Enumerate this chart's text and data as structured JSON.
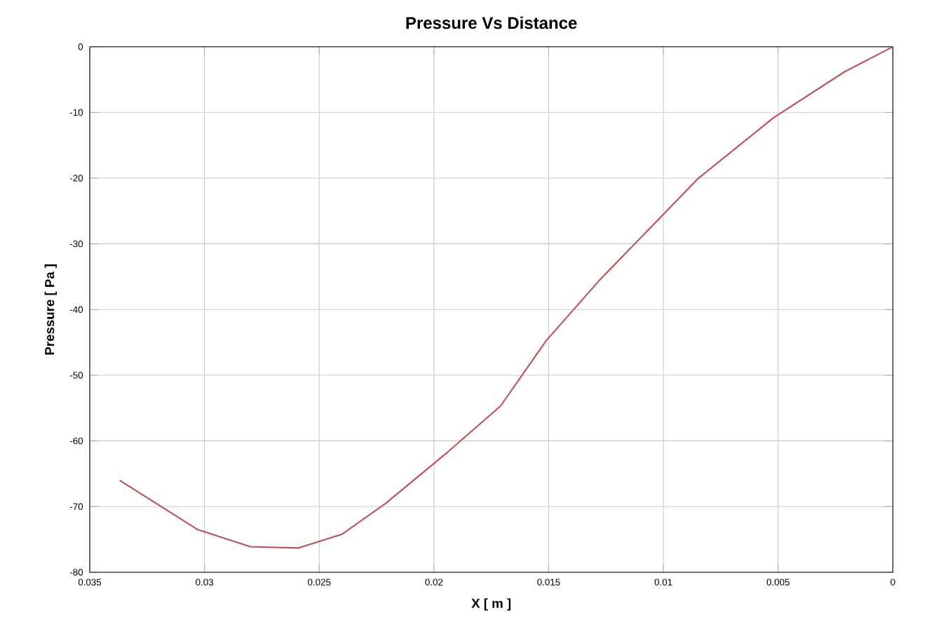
{
  "chart_data": {
    "type": "line",
    "title": "Pressure Vs Distance",
    "xlabel": "X [ m ]",
    "ylabel": "Pressure [ Pa ]",
    "x": [
      0.0337,
      0.0303,
      0.028,
      0.0259,
      0.024,
      0.0221,
      0.0194,
      0.0171,
      0.0151,
      0.0128,
      0.0085,
      0.0052,
      0.0021,
      0
    ],
    "series": [
      {
        "color": "#c05058",
        "values": [
          -66,
          -73.5,
          -76.1,
          -76.3,
          -74.2,
          -69.5,
          -61.7,
          -54.7,
          -44.7,
          -35.6,
          -20.1,
          -10.8,
          -3.8,
          0
        ]
      }
    ],
    "xlim": [
      0.035,
      0
    ],
    "ylim": [
      -80,
      0
    ],
    "xticks": [
      0.035,
      0.03,
      0.025,
      0.02,
      0.015,
      0.01,
      0.005,
      0
    ],
    "yticks": [
      0,
      -10,
      -20,
      -30,
      -40,
      -50,
      -60,
      -70,
      -80
    ],
    "grid": true,
    "marker": "none",
    "line_style": "solid"
  }
}
